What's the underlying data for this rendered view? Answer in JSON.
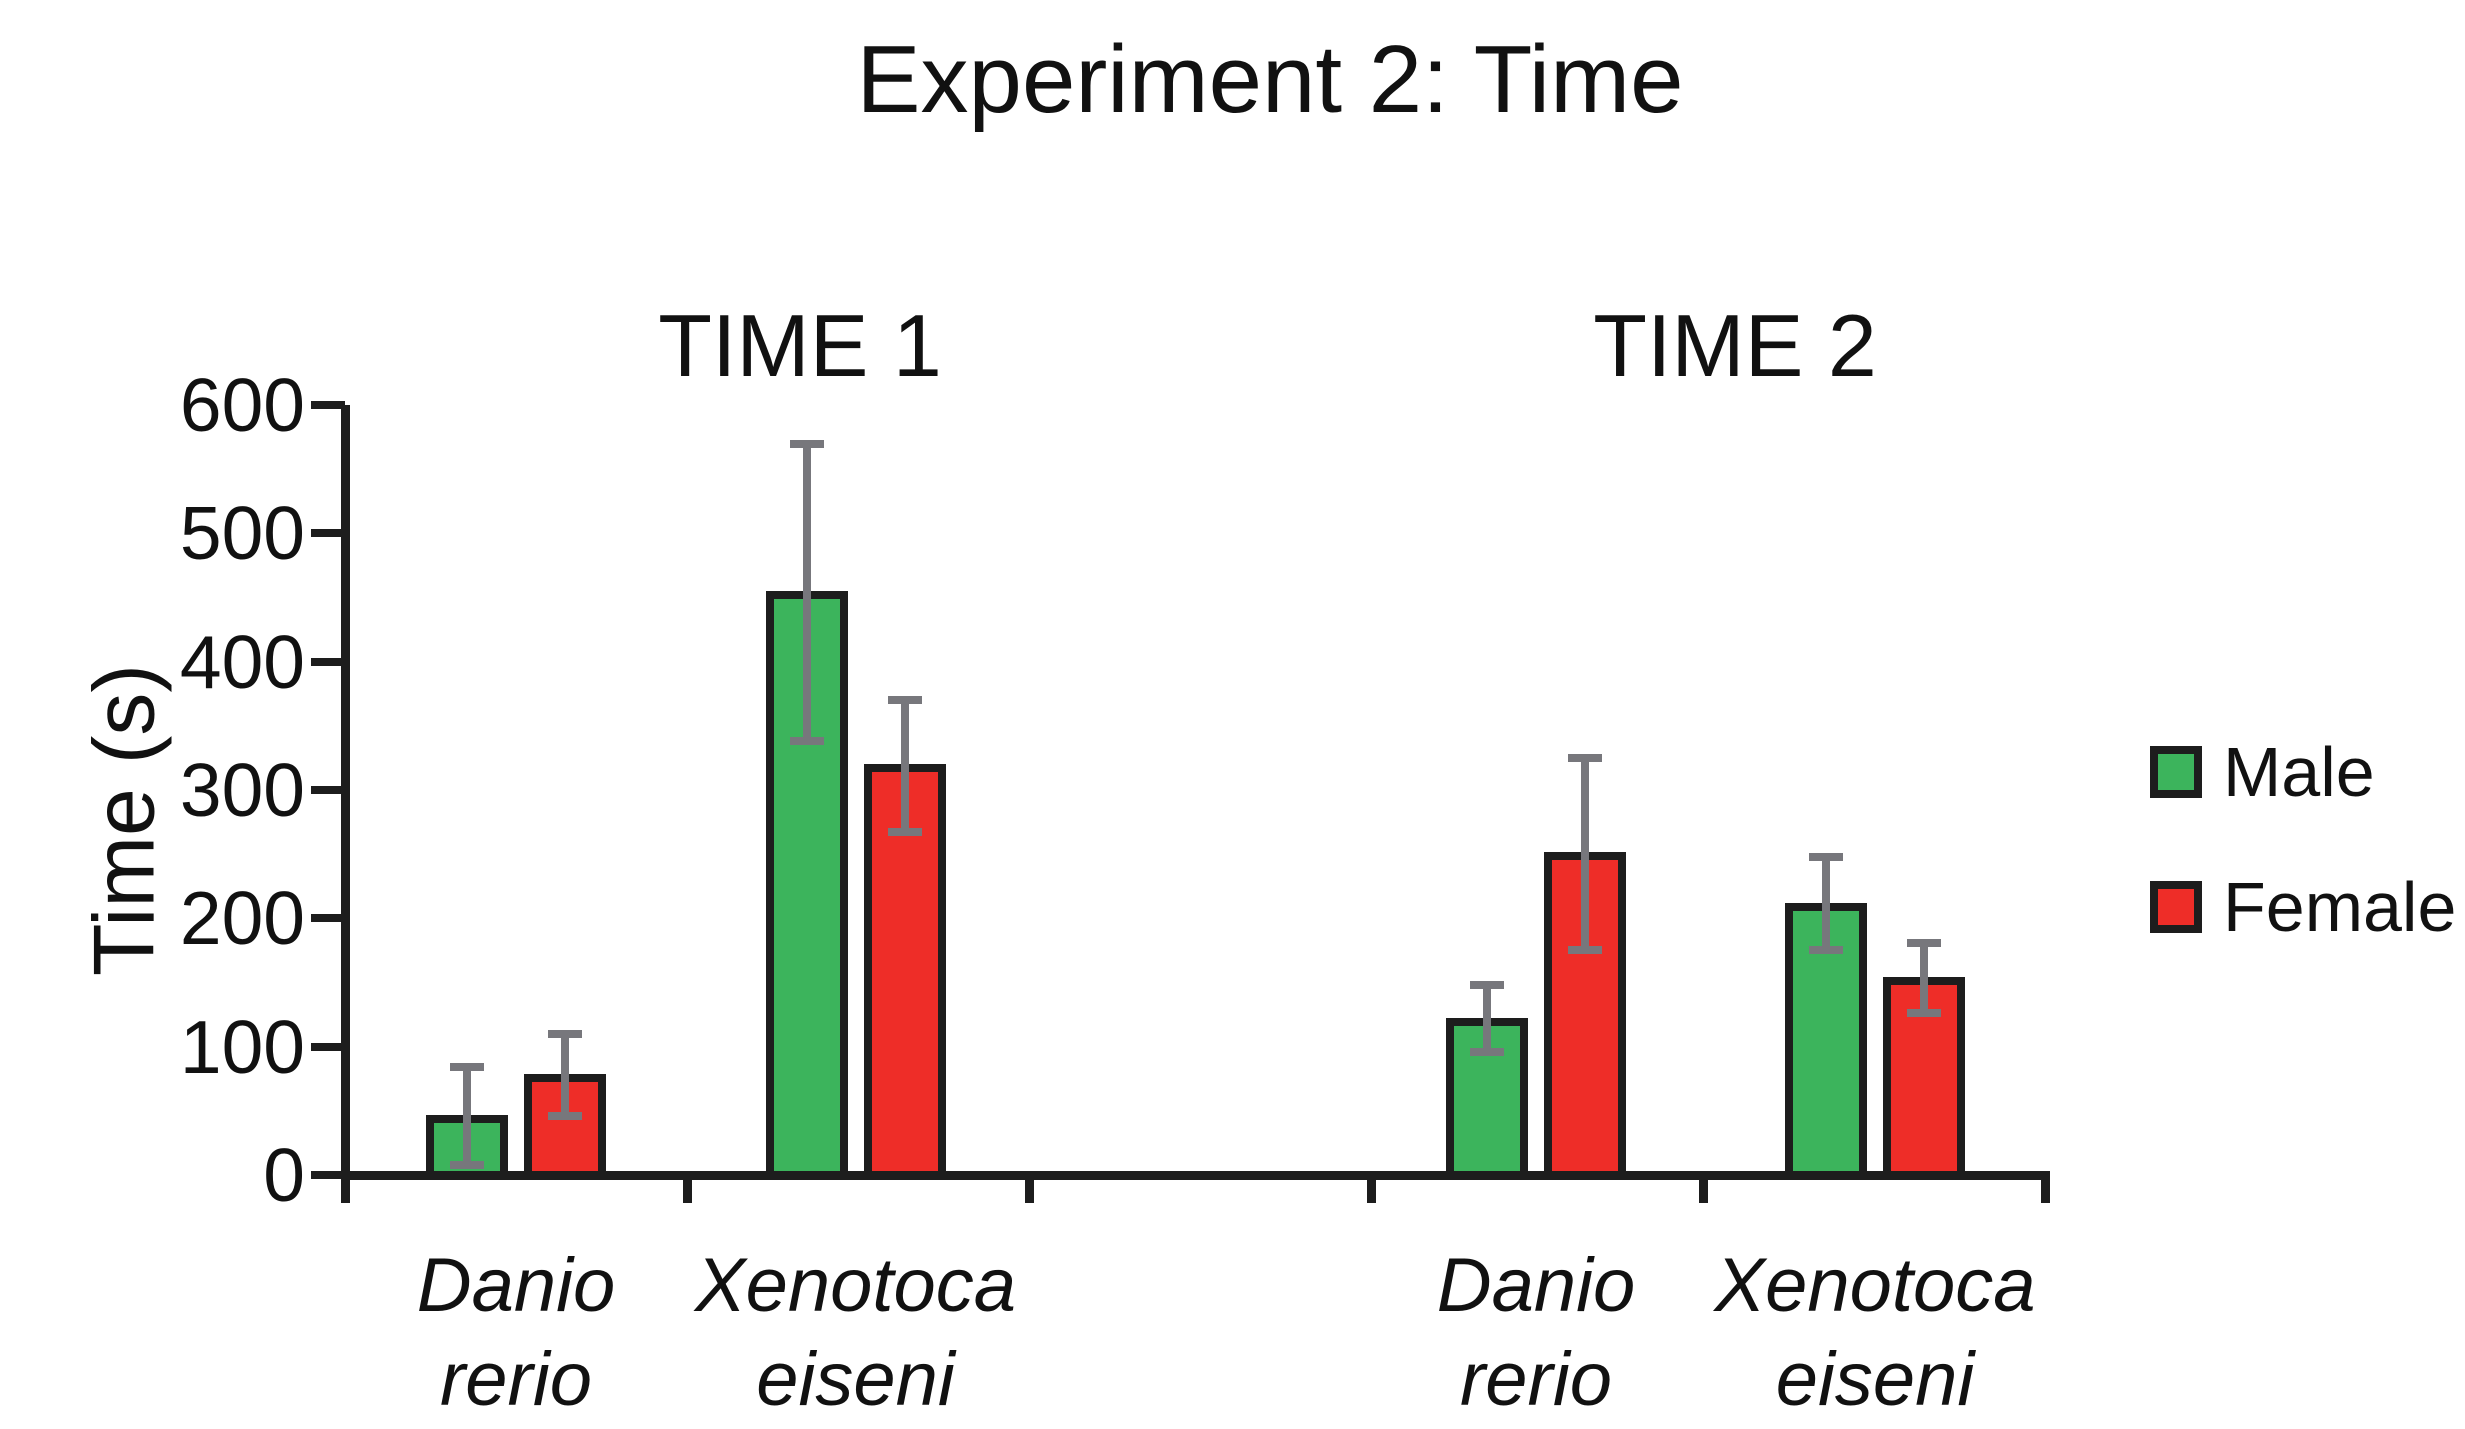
{
  "title": "Experiment 2: Time",
  "panel_headers": [
    "TIME 1",
    "TIME 2"
  ],
  "legend": {
    "items": [
      {
        "label": "Male",
        "color": "#3cb45c"
      },
      {
        "label": "Female",
        "color": "#ee2d28"
      }
    ]
  },
  "colors": {
    "male_green": "#3cb45c",
    "female_red": "#ee2d28",
    "bar_border": "#1d1d1d",
    "axis": "#1d1d1d",
    "error_bar_gray": "#77777c",
    "background": "#ffffff",
    "text": "#111111"
  },
  "chart_data": {
    "type": "bar",
    "title": "Experiment 2: Time",
    "xlabel": "",
    "ylabel": "Time (s)",
    "ylim": [
      0,
      600
    ],
    "yticks": [
      0,
      100,
      200,
      300,
      400,
      500,
      600
    ],
    "grid": false,
    "legend_position": "right",
    "panels": [
      "TIME 1",
      "TIME 2"
    ],
    "categories": [
      "Danio rerio",
      "Xenotoca eiseni",
      "Danio rerio",
      "Xenotoca eiseni"
    ],
    "category_panels": [
      "TIME 1",
      "TIME 1",
      "TIME 2",
      "TIME 2"
    ],
    "series": [
      {
        "name": "Male",
        "color": "#3cb45c",
        "values": [
          47,
          455,
          122,
          212
        ],
        "error_low": [
          8,
          338,
          96,
          175
        ],
        "error_high": [
          84,
          570,
          148,
          248
        ]
      },
      {
        "name": "Female",
        "color": "#ee2d28",
        "values": [
          79,
          320,
          252,
          154
        ],
        "error_low": [
          46,
          267,
          175,
          126
        ],
        "error_high": [
          110,
          370,
          325,
          181
        ]
      }
    ]
  }
}
